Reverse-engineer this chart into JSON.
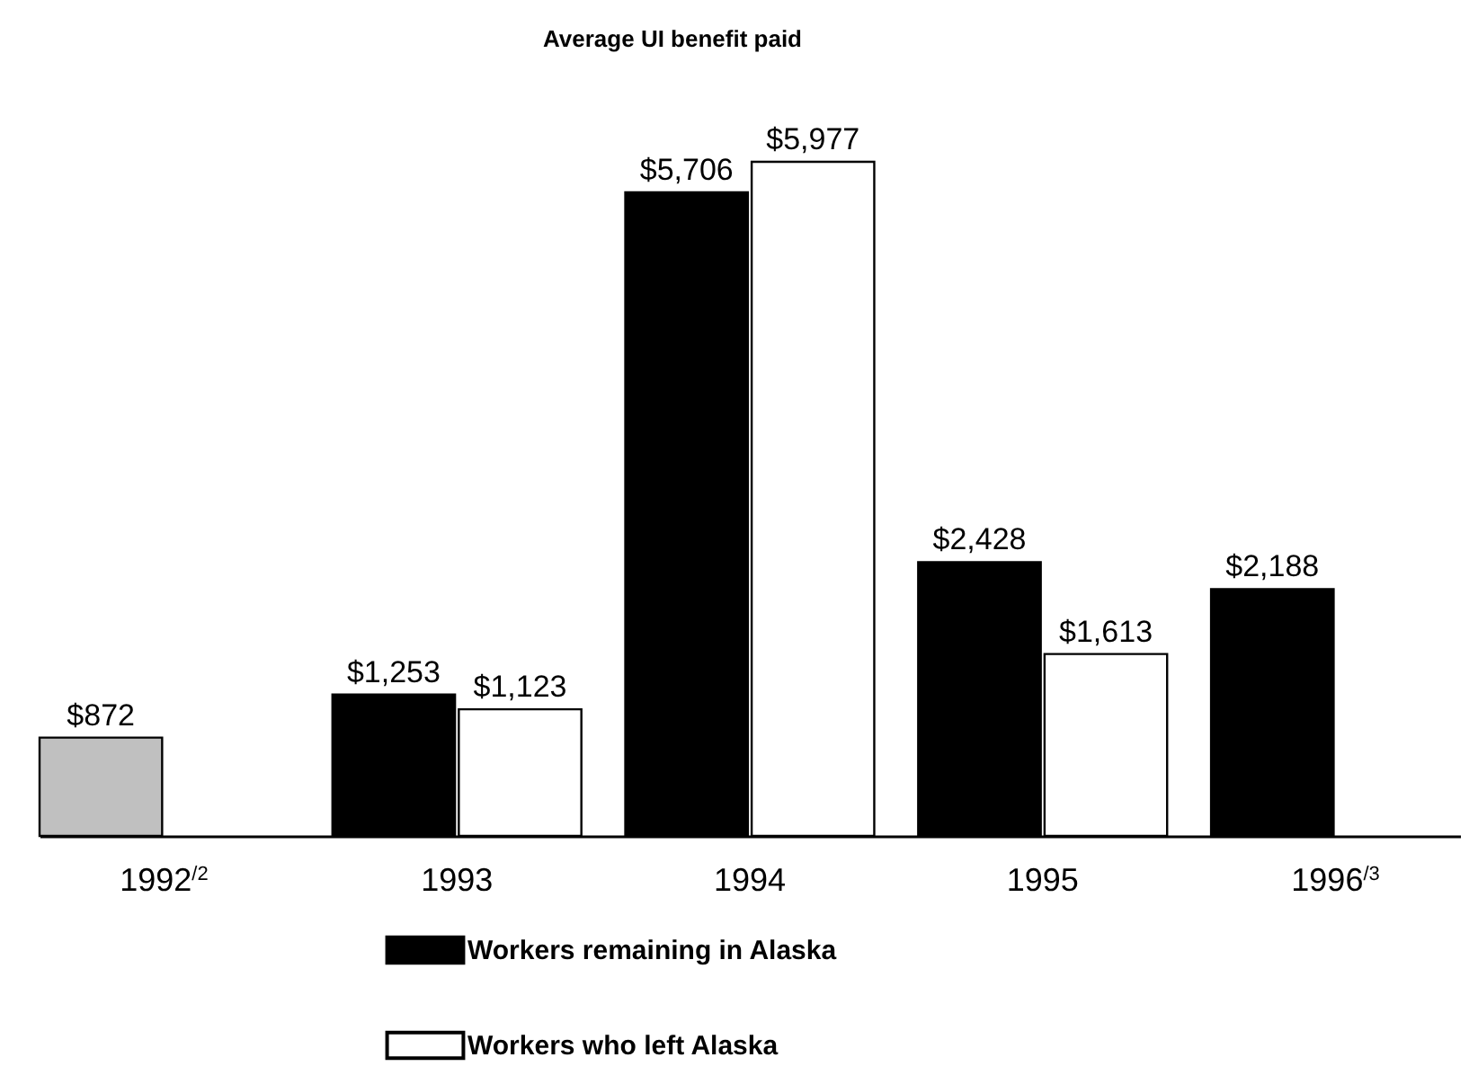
{
  "chart_data": {
    "type": "bar",
    "title": "Average UI benefit paid",
    "categories": [
      "1992$^{/2}$",
      "1993",
      "1994",
      "1995",
      "1996$^{/3}$"
    ],
    "series": [
      {
        "name": "Workers remaining in Alaska",
        "color": "#000000",
        "colors": [
          "#c0c0c0",
          "#000000",
          "#000000",
          "#000000",
          "#000000"
        ],
        "values": [
          872,
          1253,
          5706,
          2428,
          2188
        ],
        "value_labels": [
          "$872",
          "$1,253",
          "$5,706",
          "$2,428",
          "$2,188"
        ]
      },
      {
        "name": "Workers who left Alaska",
        "color": "#ffffff",
        "values": [
          null,
          1123,
          5977,
          1613,
          null
        ],
        "value_labels": [
          null,
          "$1,123",
          "$5,977",
          "$1,613",
          null
        ]
      }
    ],
    "legend": "bottom"
  }
}
